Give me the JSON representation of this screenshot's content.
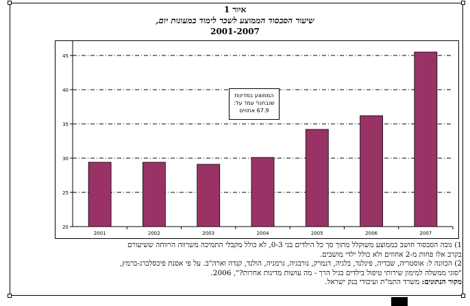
{
  "figure": {
    "number_label": "איור 1",
    "title": "שיעור הסבסוד הממוצע לשכר לימוד במעונות יום,",
    "years": "2001-2007"
  },
  "callout": {
    "line1": "הממוצע במדינות",
    "line2": "שנבחנו² עמד על:",
    "line3": "67.9 אחוזים"
  },
  "notes": {
    "line1": "1) גובה הסבסוד חושב כממוצע משוקלל מתוך סך כל הילדים בני 0-3, לא כולל מקבלי התמיכה משרווה הרווחה ששיעורם",
    "line2": "בקרב אלו פחות מ-2 אחוזים ולא כולל ילדי מושבים.",
    "line3": "2) הכוונה ל: אוסטריה, שבדיה, פינלנד, בלגיה, דנמרק, נורבגיה, גרמניה, הולנד, קנדה וארה\"ב. על פי אסנת פיכסלברג-ברמץ,",
    "line4": "\"סוגי ממשלה למימון שירותי טיפול בילדים בגיל הרך - מה עושות מדינות אחרות?\", 2006.",
    "source_label": "מקור הנתונים:",
    "source_text": "משרד התמ\"ת ועיבודי בנק ישראל."
  },
  "chart_data": {
    "type": "bar",
    "categories": [
      "2001",
      "2002",
      "2003",
      "2004",
      "2005",
      "2006",
      "2007"
    ],
    "values": [
      29.4,
      29.4,
      29.1,
      30.1,
      34.2,
      36.2,
      45.5
    ],
    "ylim": [
      20,
      47
    ],
    "yticks": [
      20,
      25,
      30,
      35,
      40,
      45
    ],
    "grid": true,
    "colors": {
      "bar": "#993366",
      "grid": "#000000"
    }
  }
}
